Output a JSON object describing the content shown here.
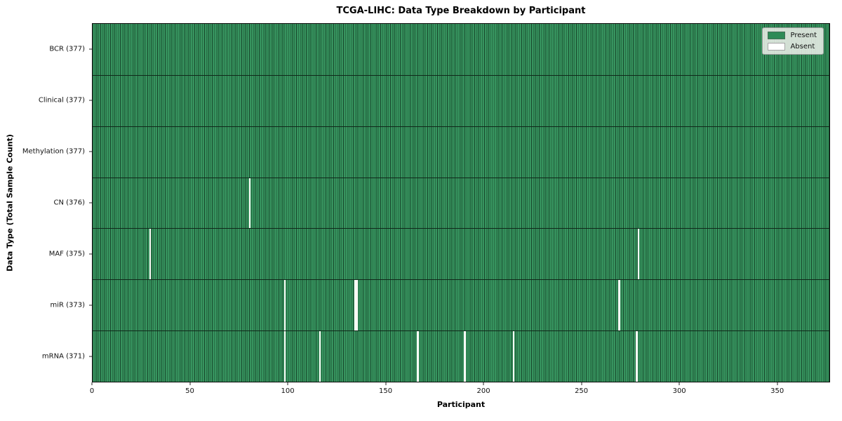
{
  "figure": {
    "title": "TCGA-LIHC: Data Type Breakdown by Participant",
    "xlabel": "Participant",
    "ylabel": "Data Type (Total Sample Count)"
  },
  "legend": {
    "items": [
      {
        "name": "present",
        "label": "Present",
        "color": "#2e8b57"
      },
      {
        "name": "absent",
        "label": "Absent",
        "color": "#ffffff"
      }
    ]
  },
  "colors": {
    "present_fill": "#37945f",
    "present_edge": "#17472b",
    "absent_gap": "#f9f9f5",
    "row_separator": "#10281a",
    "spine": "#0d0d0d"
  },
  "chart_data": {
    "type": "heatmap",
    "title": "TCGA-LIHC: Data Type Breakdown by Participant",
    "xlabel": "Participant",
    "ylabel": "Data Type (Total Sample Count)",
    "x_range": [
      0,
      377
    ],
    "n_participants": 377,
    "x_ticks": [
      0,
      50,
      100,
      150,
      200,
      250,
      300,
      350
    ],
    "grid": false,
    "legend_position": "upper right",
    "legend_entries": [
      "Present",
      "Absent"
    ],
    "value_encoding": {
      "present": 1,
      "absent": 0
    },
    "rows": [
      {
        "label": "BCR (377)",
        "data_type": "BCR",
        "present_count": 377,
        "absent_count": 0,
        "absent_participants": []
      },
      {
        "label": "Clinical (377)",
        "data_type": "Clinical",
        "present_count": 377,
        "absent_count": 0,
        "absent_participants": []
      },
      {
        "label": "Methylation (377)",
        "data_type": "Methylation",
        "present_count": 377,
        "absent_count": 0,
        "absent_participants": []
      },
      {
        "label": "CN (376)",
        "data_type": "CN",
        "present_count": 376,
        "absent_count": 1,
        "absent_participants": [
          80
        ]
      },
      {
        "label": "MAF (375)",
        "data_type": "MAF",
        "present_count": 375,
        "absent_count": 2,
        "absent_participants": [
          29,
          279
        ]
      },
      {
        "label": "miR (373)",
        "data_type": "miR",
        "present_count": 373,
        "absent_count": 4,
        "absent_participants": [
          98,
          134,
          135,
          269
        ]
      },
      {
        "label": "mRNA (371)",
        "data_type": "mRNA",
        "present_count": 371,
        "absent_count": 6,
        "absent_participants": [
          98,
          116,
          166,
          190,
          215,
          278
        ]
      }
    ]
  }
}
